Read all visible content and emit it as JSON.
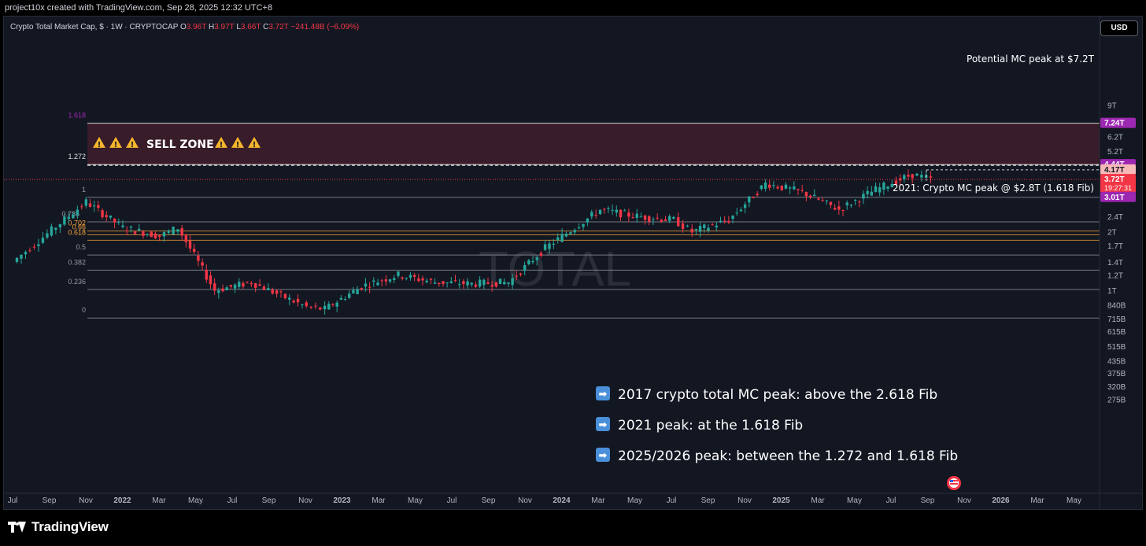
{
  "header": {
    "attribution": "project10x created with TradingView.com, Sep 28, 2025 12:32 UTC+8"
  },
  "legend": {
    "symbol": "Crypto Total Market Cap, $ · 1W · CRYPTOCAP",
    "open_label": "O",
    "open": "3.96T",
    "high_label": "H",
    "high": "3.97T",
    "low_label": "L",
    "low": "3.66T",
    "close_label": "C",
    "close": "3.72T",
    "change": "−241.48B (−6.09%)"
  },
  "currency_button": "USD",
  "watermark": "TOTAL",
  "footer": {
    "brand": "TradingView"
  },
  "colors": {
    "up": "#26a69a",
    "down": "#f23645",
    "background": "#131722",
    "sell_zone": "#3a1c2a",
    "fib_orange": "#f7a23b",
    "fib_purple": "#9c27b0",
    "current_price": "#f23645"
  },
  "icons": [
    "warning-icon",
    "arrow-right-icon",
    "us-flag-icon",
    "tradingview-logo"
  ],
  "chart_data": {
    "type": "candlestick",
    "title": "Crypto Total Market Cap, $ · 1W · CRYPTOCAP",
    "y_scale": "log",
    "y_ticks": [
      "9T",
      "7.2T",
      "6.2T",
      "5.2T",
      "4.2T",
      "3.01T",
      "2.4T",
      "2T",
      "1.7T",
      "1.4T",
      "1.2T",
      "1T",
      "840B",
      "715B",
      "615B",
      "515B",
      "435B",
      "375B",
      "320B",
      "275B"
    ],
    "x_ticks": [
      "Jul",
      "Sep",
      "Nov",
      "2022",
      "Mar",
      "May",
      "Jul",
      "Sep",
      "Nov",
      "2023",
      "Mar",
      "May",
      "Jul",
      "Sep",
      "Nov",
      "2024",
      "Mar",
      "May",
      "Jul",
      "Sep",
      "Nov",
      "2025",
      "Mar",
      "May",
      "Jul",
      "Sep",
      "Nov",
      "2026",
      "Mar",
      "May"
    ],
    "price_labels": [
      {
        "text": "7.24T",
        "value": 7.24,
        "color": "#9c27b0"
      },
      {
        "text": "4.44T",
        "value": 4.44,
        "color": "#9c27b0"
      },
      {
        "text": "4.17T",
        "value": 4.17,
        "color": "#f7b8b8"
      },
      {
        "text": "3.72T",
        "countdown": "19:27:31",
        "value": 3.72,
        "color": "#f23645"
      },
      {
        "text": "3.01T",
        "value": 3.01,
        "color": "#9c27b0"
      }
    ],
    "fib_levels": [
      {
        "label": "1.618",
        "value": 7.24,
        "color": "#9c27b0"
      },
      {
        "label": "1.272",
        "value": 4.44,
        "color": "#e0e0e0"
      },
      {
        "label": "1",
        "value": 3.01,
        "color": "#9598a1"
      },
      {
        "label": "0.786",
        "value": 2.25,
        "color": "#9598a1"
      },
      {
        "label": "0.702",
        "value": 2.02,
        "color": "#f7a23b"
      },
      {
        "label": "0.66",
        "value": 1.93,
        "color": "#f7a23b"
      },
      {
        "label": "0.618",
        "value": 1.81,
        "color": "#f7a23b"
      },
      {
        "label": "0.5",
        "value": 1.52,
        "color": "#9598a1"
      },
      {
        "label": "0.382",
        "value": 1.27,
        "color": "#9598a1"
      },
      {
        "label": "0.236",
        "value": 1.01,
        "color": "#9598a1"
      },
      {
        "label": "0",
        "value": 0.72,
        "color": "#9598a1"
      }
    ],
    "sell_zone": {
      "from": 4.44,
      "to": 7.24,
      "label": "SELL ZONE"
    },
    "annotations": {
      "top": "Potential MC peak at $7.2T",
      "mid": "2021: Crypto MC peak @ $2.8T (1.618 Fib)",
      "notes": [
        "2017 crypto total MC peak: above the 2.618 Fib",
        "2021 peak: at the 1.618 Fib",
        "2025/2026 peak: between the 1.272 and 1.618 Fib"
      ]
    },
    "anchors": [
      {
        "month": "2021-07",
        "value": 1.4
      },
      {
        "month": "2021-11",
        "value": 2.85
      },
      {
        "month": "2022-01",
        "value": 2.1
      },
      {
        "month": "2022-03",
        "value": 1.9
      },
      {
        "month": "2022-04",
        "value": 2.1
      },
      {
        "month": "2022-06",
        "value": 1.0
      },
      {
        "month": "2022-08",
        "value": 1.1
      },
      {
        "month": "2022-11",
        "value": 0.82
      },
      {
        "month": "2022-12",
        "value": 0.8
      },
      {
        "month": "2023-02",
        "value": 1.05
      },
      {
        "month": "2023-04",
        "value": 1.2
      },
      {
        "month": "2023-06",
        "value": 1.1
      },
      {
        "month": "2023-08",
        "value": 1.08
      },
      {
        "month": "2023-10",
        "value": 1.1
      },
      {
        "month": "2023-12",
        "value": 1.65
      },
      {
        "month": "2024-03",
        "value": 2.6
      },
      {
        "month": "2024-05",
        "value": 2.4
      },
      {
        "month": "2024-07",
        "value": 2.3
      },
      {
        "month": "2024-08",
        "value": 2.0
      },
      {
        "month": "2024-10",
        "value": 2.3
      },
      {
        "month": "2024-12",
        "value": 3.55
      },
      {
        "month": "2025-02",
        "value": 3.2
      },
      {
        "month": "2025-04",
        "value": 2.6
      },
      {
        "month": "2025-06",
        "value": 3.3
      },
      {
        "month": "2025-08",
        "value": 3.95
      },
      {
        "month": "2025-09",
        "value": 3.72
      }
    ]
  }
}
